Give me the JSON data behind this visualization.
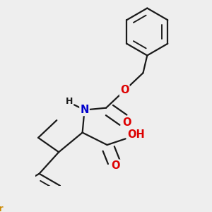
{
  "background_color": "#eeeeee",
  "bond_color": "#1a1a1a",
  "bond_width": 1.6,
  "atom_colors": {
    "O": "#dd0000",
    "N": "#0000cc",
    "Br": "#cc8800"
  },
  "font_size": 10.5,
  "font_size_small": 9.0
}
